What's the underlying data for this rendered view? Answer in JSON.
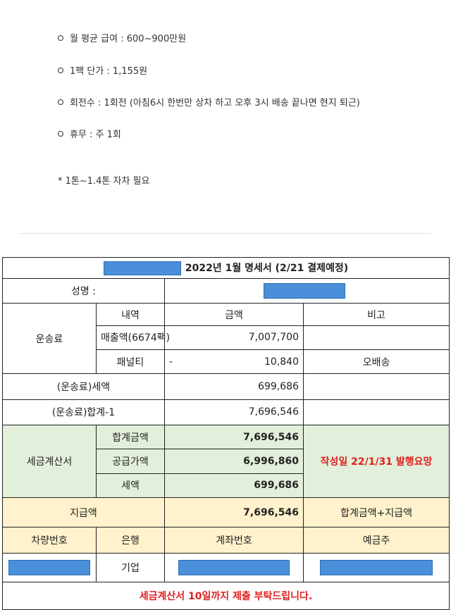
{
  "bullets": [
    "월 평균 급여 : 600~900만원",
    "1팩 단가 : 1,155원",
    "회전수 : 1회전 (아침6시 한번만 상차 하고 오후 3시 배송 끝나면 현지 퇴근)",
    "휴무 : 주 1회"
  ],
  "note": "* 1톤~1.4톤 자차 필요",
  "statement": {
    "title": "2022년 1월 명세서 (2/21 결제예정)",
    "name_label": "성명 :",
    "headers": {
      "detail": "내역",
      "amount": "금액",
      "remarks": "비고"
    },
    "freight_label": "운송료",
    "sales_label": "매출액(6674팩)",
    "sales_amount": "7,007,700",
    "penalty_label": "패널티",
    "penalty_sign": "-",
    "penalty_amount": "10,840",
    "penalty_remark": "오배송",
    "tax_label": "(운송료)세액",
    "tax_amount": "699,686",
    "total1_label": "(운송료)합계-1",
    "total1_amount": "7,696,546",
    "invoice_label": "세금계산서",
    "sum_label": "합계금액",
    "sum_amount": "7,696,546",
    "supply_label": "공급가액",
    "supply_amount": "6,996,860",
    "vat_label": "세액",
    "vat_amount": "699,686",
    "invoice_remark": "작성일 22/1/31 발행요망",
    "payment_label": "지급액",
    "payment_amount": "7,696,546",
    "payment_remark": "합계금액+지급액",
    "vehicle_header": "차량번호",
    "bank_header": "은행",
    "account_header": "계좌번호",
    "holder_header": "예금주",
    "bank_value": "기업",
    "footer": "세금계산서 10일까지 제출 부탁드립니다.",
    "colors": {
      "green": "#e2efda",
      "yellow": "#fff2cc",
      "redaction": "#4a8fd9",
      "alert": "#e02020"
    }
  }
}
